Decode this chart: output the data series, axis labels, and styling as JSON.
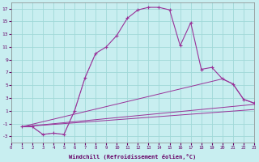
{
  "bg_color": "#c8eef0",
  "grid_color": "#a0d8d8",
  "line_color": "#993399",
  "xlim": [
    0,
    23
  ],
  "ylim": [
    -4,
    18
  ],
  "xticks": [
    0,
    1,
    2,
    3,
    4,
    5,
    6,
    7,
    8,
    9,
    10,
    11,
    12,
    13,
    14,
    15,
    16,
    17,
    18,
    19,
    20,
    21,
    22,
    23
  ],
  "yticks": [
    -3,
    -1,
    1,
    3,
    5,
    7,
    9,
    11,
    13,
    15,
    17
  ],
  "xlabel": "Windchill (Refroidissement éolien,°C)",
  "curve_main_x": [
    1,
    2,
    3,
    4,
    5,
    6,
    7,
    8,
    9,
    10,
    11,
    12,
    13,
    14,
    15,
    16,
    17,
    18,
    19,
    20,
    21,
    22,
    23
  ],
  "curve_main_y": [
    -1.5,
    -1.5,
    -2.7,
    -2.5,
    -2.7,
    1.0,
    6.2,
    10.0,
    11.0,
    12.8,
    15.5,
    16.8,
    17.2,
    17.2,
    16.8,
    11.2,
    14.8,
    7.5,
    7.8,
    6.0,
    5.2,
    2.8,
    2.2
  ],
  "curve_left_x": [
    1,
    2,
    3,
    4,
    5,
    6,
    7,
    8
  ],
  "curve_left_y": [
    -1.5,
    -1.5,
    -2.7,
    -2.5,
    -2.7,
    1.0,
    6.2,
    10.0
  ],
  "line1_x": [
    1,
    20,
    21,
    22,
    23
  ],
  "line1_y": [
    -1.5,
    6.0,
    5.2,
    2.8,
    2.2
  ],
  "line2_x": [
    1,
    23
  ],
  "line2_y": [
    -1.5,
    2.0
  ],
  "line3_x": [
    1,
    23
  ],
  "line3_y": [
    -1.5,
    1.2
  ]
}
